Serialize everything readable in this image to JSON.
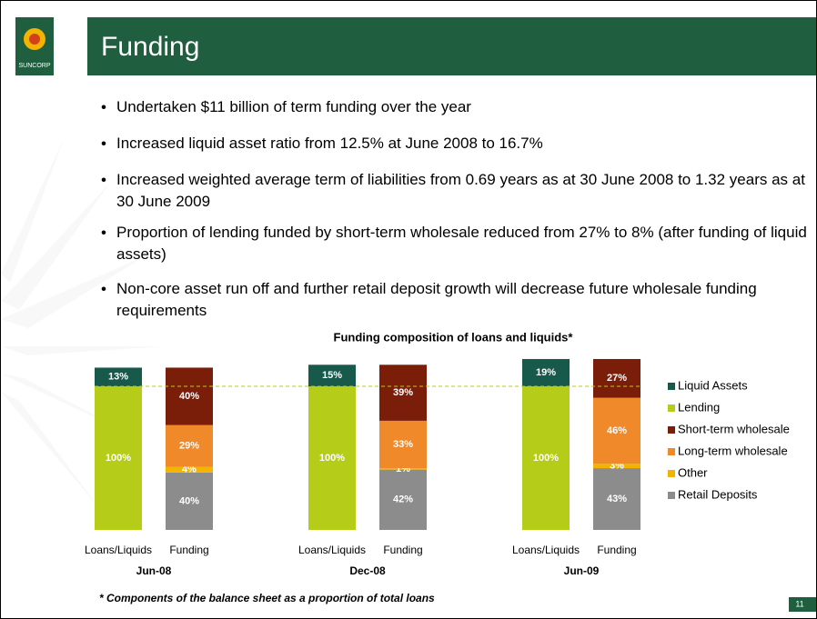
{
  "header": {
    "title": "Funding",
    "logo_text": "SUNCORP"
  },
  "bullets": [
    "Undertaken $11 billion of term funding over the year",
    "Increased liquid asset ratio from 12.5% at June 2008 to 16.7%",
    "Increased weighted average term of liabilities from 0.69 years as at 30 June 2008 to 1.32 years as at 30 June 2009",
    "Proportion of lending funded by short-term wholesale reduced from 27% to 8% (after funding of liquid assets)",
    "Non-core asset run off and further retail deposit growth will decrease future wholesale funding requirements"
  ],
  "chart_data": {
    "type": "stacked_bar",
    "title": "Funding composition of loans and liquids*",
    "categories": [
      "Loans/Liquids",
      "Funding",
      "Loans/Liquids",
      "Funding",
      "Loans/Liquids",
      "Funding"
    ],
    "groups": [
      "Jun-08",
      "Dec-08",
      "Jun-09"
    ],
    "series": [
      {
        "name": "Retail Deposits",
        "color": "#8c8c8c",
        "values": [
          null,
          40,
          null,
          42,
          null,
          43
        ],
        "value_labels": [
          null,
          "40%",
          null,
          "42%",
          null,
          "43%"
        ]
      },
      {
        "name": "Other",
        "color": "#f2b400",
        "values": [
          null,
          4,
          null,
          1,
          null,
          3
        ],
        "value_labels": [
          null,
          "4%",
          null,
          "1%",
          null,
          "3%"
        ]
      },
      {
        "name": "Long-term wholesale",
        "color": "#f0892a",
        "values": [
          null,
          29,
          null,
          33,
          null,
          46
        ],
        "value_labels": [
          null,
          "29%",
          null,
          "33%",
          null,
          "46%"
        ]
      },
      {
        "name": "Short-term wholesale",
        "color": "#7a1e0a",
        "values": [
          null,
          40,
          null,
          39,
          null,
          27
        ],
        "value_labels": [
          null,
          "40%",
          null,
          "39%",
          null,
          "27%"
        ]
      },
      {
        "name": "Lending",
        "color": "#b5cc18",
        "values": [
          100,
          null,
          100,
          null,
          100,
          null
        ],
        "value_labels": [
          "100%",
          null,
          "100%",
          null,
          "100%",
          null
        ]
      },
      {
        "name": "Liquid Assets",
        "color": "#17594a",
        "values": [
          13,
          null,
          15,
          null,
          19,
          null
        ],
        "value_labels": [
          "13%",
          null,
          "15%",
          null,
          "19%",
          null
        ]
      }
    ],
    "legend_order": [
      5,
      4,
      3,
      2,
      1,
      0
    ]
  },
  "footnote": "* Components of the balance sheet as a proportion of total loans",
  "page_number": "11"
}
